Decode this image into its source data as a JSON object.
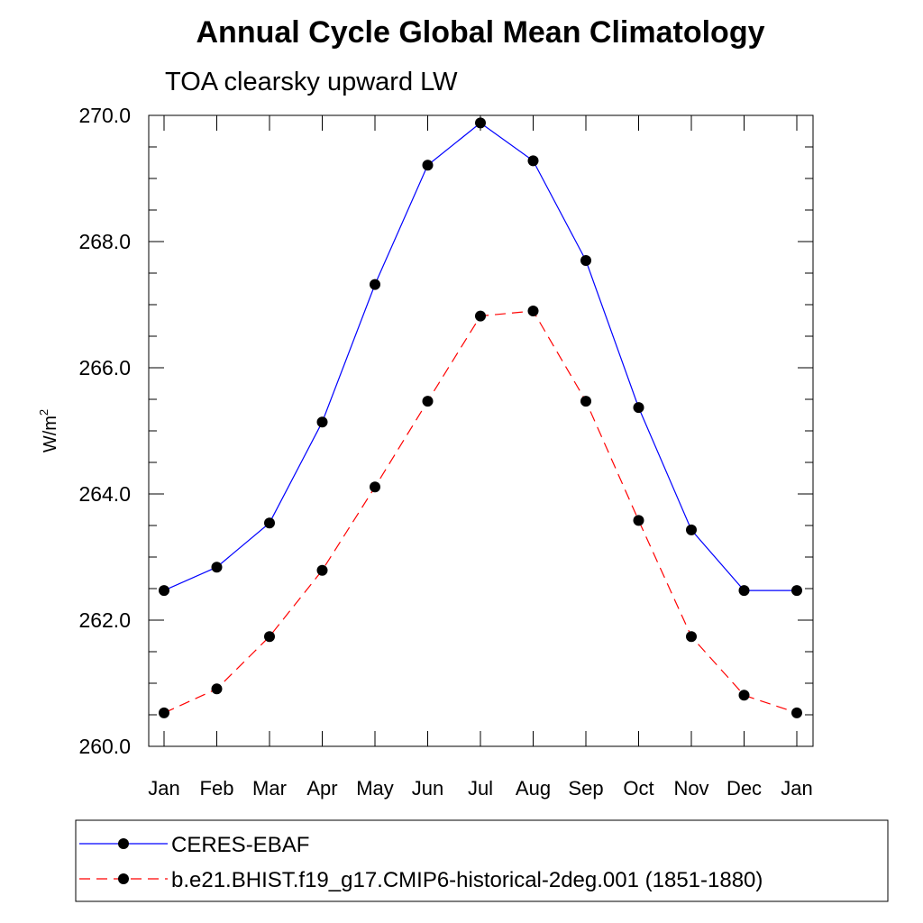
{
  "chart_data": {
    "type": "line",
    "title": "Annual Cycle Global Mean Climatology",
    "subtitle": "TOA clearsky upward LW",
    "ylabel_base": "W/m",
    "ylabel_sup": "2",
    "ylim": [
      260.0,
      270.0
    ],
    "yticks": [
      "260.0",
      "262.0",
      "264.0",
      "266.0",
      "268.0",
      "270.0"
    ],
    "categories": [
      "Jan",
      "Feb",
      "Mar",
      "Apr",
      "May",
      "Jun",
      "Jul",
      "Aug",
      "Sep",
      "Oct",
      "Nov",
      "Dec",
      "Jan"
    ],
    "grid": false,
    "legend_position": "bottom",
    "series": [
      {
        "name": "CERES-EBAF",
        "color": "#0000ff",
        "dash": "solid",
        "values": [
          262.47,
          262.84,
          263.54,
          265.14,
          267.32,
          269.21,
          269.88,
          269.28,
          267.7,
          265.37,
          263.43,
          262.47,
          262.47
        ]
      },
      {
        "name": "b.e21.BHIST.f19_g17.CMIP6-historical-2deg.001 (1851-1880)",
        "color": "#ff0000",
        "dash": "dashed",
        "values": [
          260.53,
          260.91,
          261.74,
          262.79,
          264.11,
          265.47,
          266.82,
          266.9,
          265.47,
          263.58,
          261.74,
          260.81,
          260.53
        ]
      }
    ]
  }
}
